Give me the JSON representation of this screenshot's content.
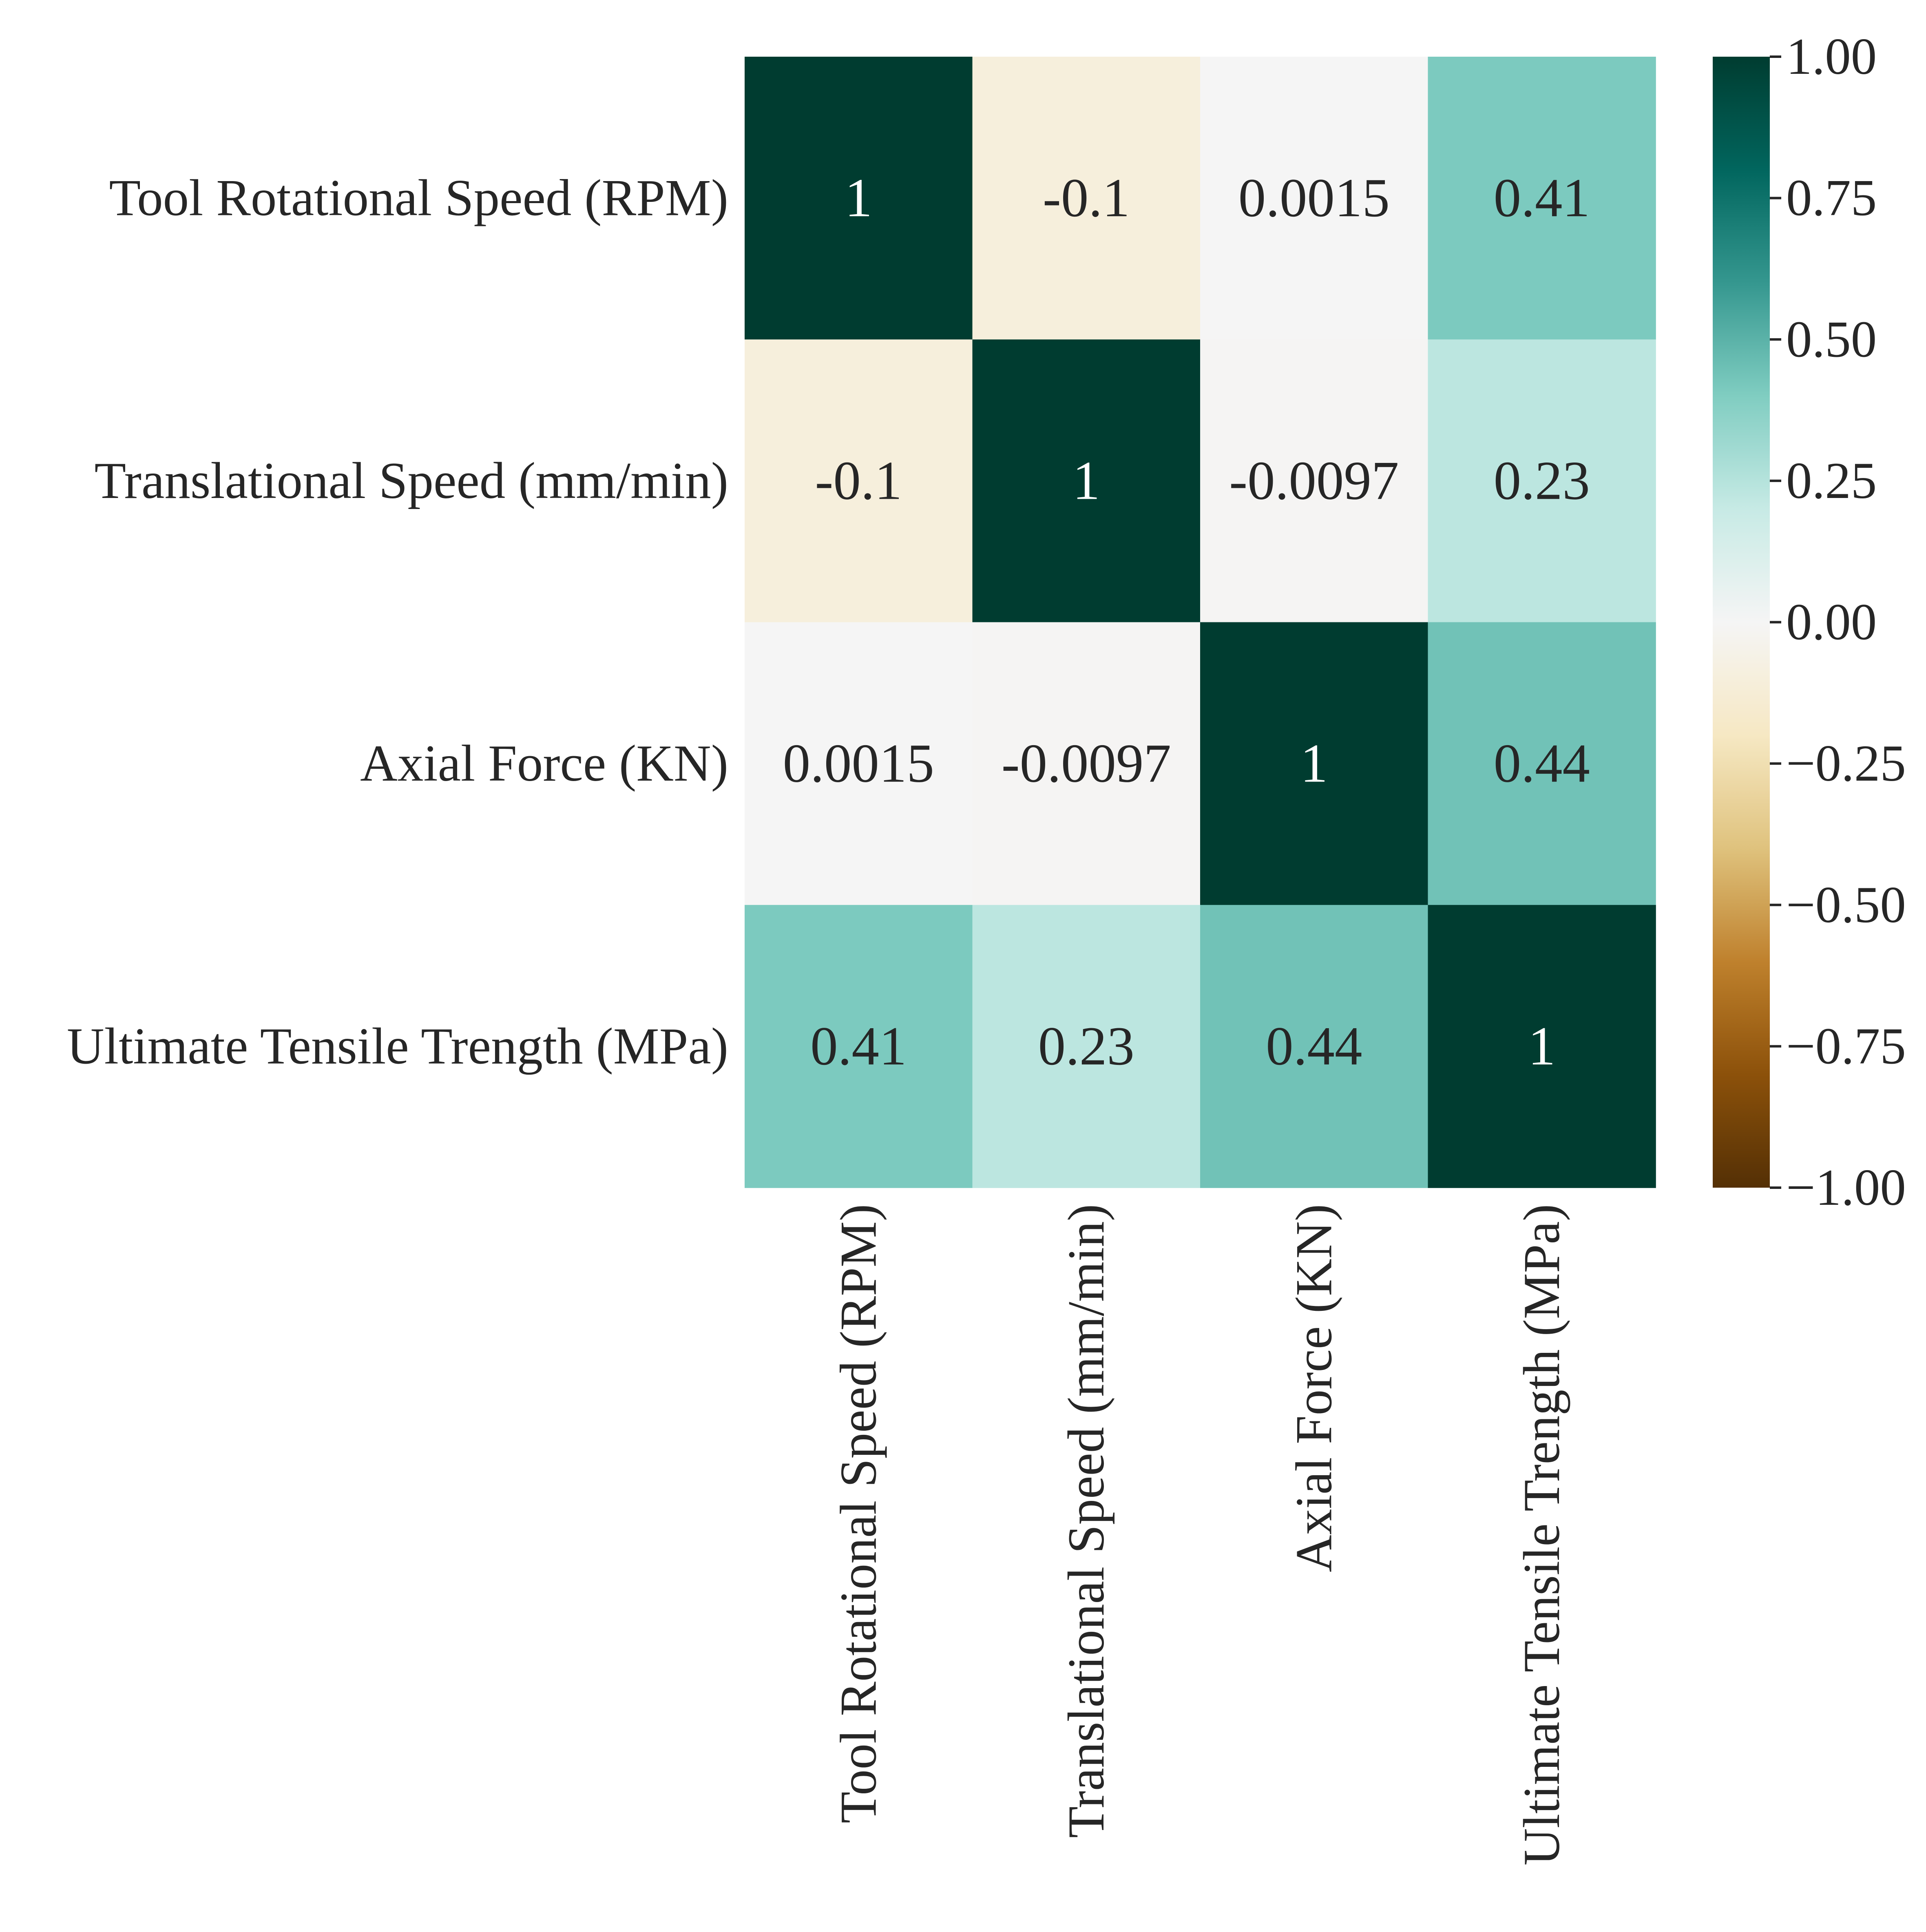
{
  "chart_data": {
    "type": "heatmap",
    "title": "",
    "xlabel": "",
    "ylabel": "",
    "row_labels": [
      "Tool Rotational Speed (RPM)",
      "Translational Speed (mm/min)",
      "Axial Force (KN)",
      "Ultimate Tensile Trength (MPa)"
    ],
    "col_labels": [
      "Tool Rotational Speed (RPM)",
      "Translational Speed (mm/min)",
      "Axial Force (KN)",
      "Ultimate Tensile Trength (MPa)"
    ],
    "values": [
      [
        1,
        -0.1,
        0.0015,
        0.41
      ],
      [
        -0.1,
        1,
        -0.0097,
        0.23
      ],
      [
        0.0015,
        -0.0097,
        1,
        0.44
      ],
      [
        0.41,
        0.23,
        0.44,
        1
      ]
    ],
    "annotations": [
      [
        "1",
        "-0.1",
        "0.0015",
        "0.41"
      ],
      [
        "-0.1",
        "1",
        "-0.0097",
        "0.23"
      ],
      [
        "0.0015",
        "-0.0097",
        "1",
        "0.44"
      ],
      [
        "0.41",
        "0.23",
        "0.44",
        "1"
      ]
    ],
    "colorbar": {
      "colormap": "BrBG",
      "vmin": -1.0,
      "vmax": 1.0,
      "ticks": [
        1.0,
        0.75,
        0.5,
        0.25,
        0.0,
        -0.25,
        -0.5,
        -0.75,
        -1.0
      ],
      "tick_labels": [
        "1.00",
        "0.75",
        "0.50",
        "0.25",
        "0.00",
        "−0.25",
        "−0.50",
        "−0.75",
        "−1.00"
      ],
      "placement": "right"
    },
    "grid": false,
    "legend": "none"
  }
}
